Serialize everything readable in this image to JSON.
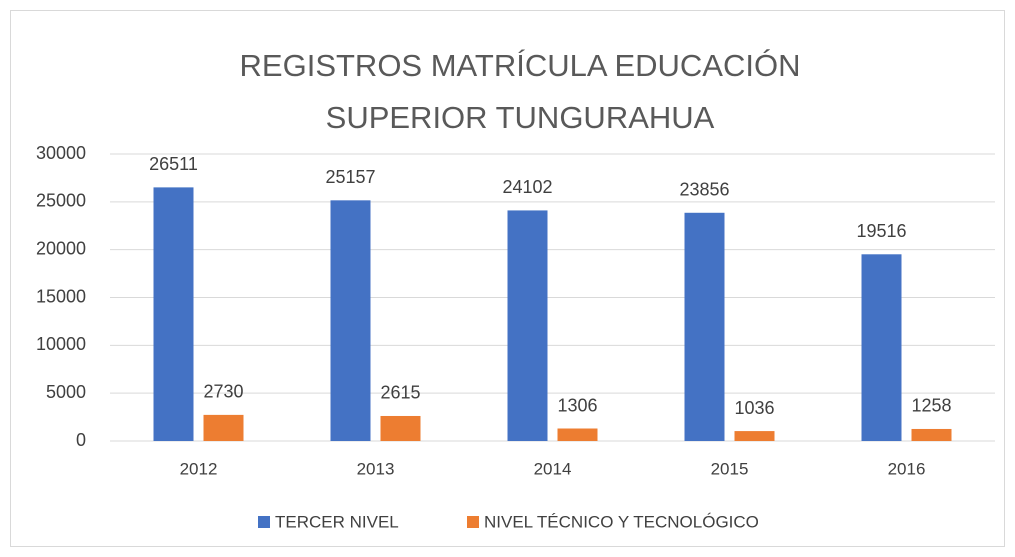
{
  "chart_data": {
    "type": "bar",
    "title": "REGISTROS MATRÍCULA EDUCACIÓN SUPERIOR TUNGURAHUA",
    "categories": [
      "2012",
      "2013",
      "2014",
      "2015",
      "2016"
    ],
    "series": [
      {
        "name": "TERCER NIVEL",
        "color": "#4472c4",
        "values": [
          26511,
          25157,
          24102,
          23856,
          19516
        ]
      },
      {
        "name": "NIVEL TÉCNICO Y TECNOLÓGICO",
        "color": "#ed7d31",
        "values": [
          2730,
          2615,
          1306,
          1036,
          1258
        ]
      }
    ],
    "ylim": [
      0,
      30000
    ],
    "yticks": [
      0,
      5000,
      10000,
      15000,
      20000,
      25000,
      30000
    ],
    "grid": true,
    "legend": "bottom"
  }
}
